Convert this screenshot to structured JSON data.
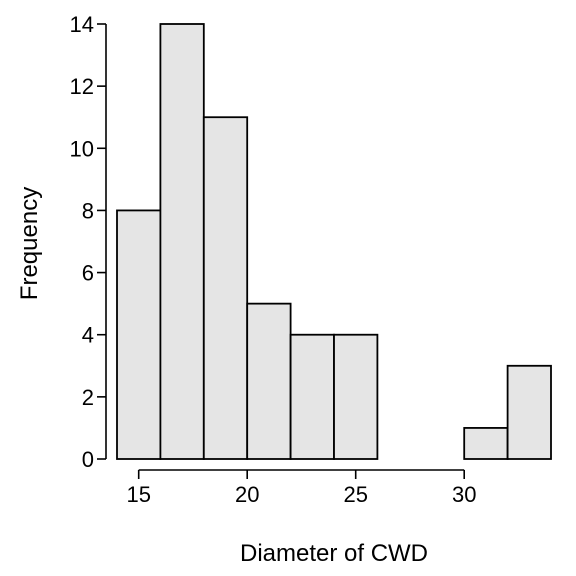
{
  "chart_data": {
    "type": "bar",
    "xlabel": "Diameter of CWD",
    "ylabel": "Frequency",
    "bins": [
      {
        "x0": 14,
        "x1": 16,
        "count": 8
      },
      {
        "x0": 16,
        "x1": 18,
        "count": 14
      },
      {
        "x0": 18,
        "x1": 20,
        "count": 11
      },
      {
        "x0": 20,
        "x1": 22,
        "count": 5
      },
      {
        "x0": 22,
        "x1": 24,
        "count": 4
      },
      {
        "x0": 24,
        "x1": 26,
        "count": 4
      },
      {
        "x0": 26,
        "x1": 28,
        "count": 0
      },
      {
        "x0": 28,
        "x1": 30,
        "count": 0
      },
      {
        "x0": 30,
        "x1": 32,
        "count": 1
      },
      {
        "x0": 32,
        "x1": 34,
        "count": 3
      }
    ],
    "xticks": [
      15,
      20,
      25,
      30
    ],
    "yticks": [
      0,
      2,
      4,
      6,
      8,
      10,
      12,
      14
    ],
    "xlim": [
      14,
      34
    ],
    "ylim": [
      0,
      14
    ],
    "bar_color": "#e5e5e5",
    "edge_color": "#000000",
    "grid": false
  }
}
